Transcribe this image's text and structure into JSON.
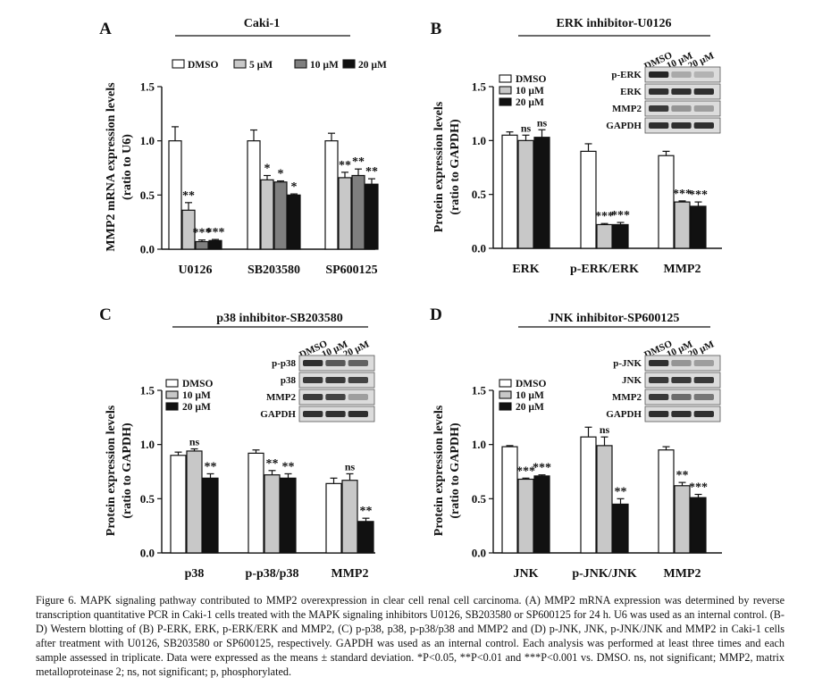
{
  "figure_caption": "Figure 6. MAPK signaling pathway contributed to MMP2 overexpression in clear cell renal cell carcinoma. (A) MMP2 mRNA expression was determined by reverse transcription quantitative PCR in Caki-1 cells treated with the MAPK signaling inhibitors U0126, SB203580 or SP600125 for 24 h. U6 was used as an internal control. (B-D) Western blotting of (B) P-ERK, ERK, p-ERK/ERK and MMP2, (C) p-p38, p38, p-p38/p38 and MMP2 and (D) p-JNK, JNK, p-JNK/JNK and MMP2 in Caki-1 cells after treatment with U0126, SB203580 or SP600125, respectively. GAPDH was used as an internal control. Each analysis was performed at least three times and each sample assessed in triplicate. Data were expressed as the means ± standard deviation. *P<0.05, **P<0.01 and ***P<0.001 vs. DMSO. ns, not significant; MMP2, matrix metalloproteinase 2; ns, not significant; p, phosphorylated.",
  "colors": {
    "DMSO": "#ffffff",
    "light_gray": "#c8c8c8",
    "dark_gray": "#7f7f7f",
    "black": "#111111"
  },
  "chart_data": [
    {
      "panel": "A",
      "type": "bar",
      "title": "Caki-1",
      "ylabel": [
        "MMP2 mRNA expression levels",
        "(ratio to U6)"
      ],
      "ylim": [
        0,
        1.5
      ],
      "yticks": [
        "0.0",
        "0.5",
        "1.0",
        "1.5"
      ],
      "categories": [
        "U0126",
        "SB203580",
        "SP600125"
      ],
      "legend_position": "top",
      "series": [
        {
          "name": "DMSO",
          "color": "#ffffff",
          "values": [
            1.0,
            1.0,
            1.0
          ],
          "errors": [
            0.13,
            0.1,
            0.07
          ]
        },
        {
          "name": "5 µM",
          "color": "#c8c8c8",
          "values": [
            0.36,
            0.64,
            0.66
          ],
          "errors": [
            0.07,
            0.04,
            0.05
          ]
        },
        {
          "name": "10 µM",
          "color": "#7f7f7f",
          "values": [
            0.07,
            0.62,
            0.68
          ],
          "errors": [
            0.015,
            0.01,
            0.06
          ]
        },
        {
          "name": "20 µM",
          "color": "#111111",
          "values": [
            0.08,
            0.5,
            0.6
          ],
          "errors": [
            0.01,
            0.01,
            0.05
          ]
        }
      ],
      "annotations": [
        [
          "",
          "**",
          "***",
          "***"
        ],
        [
          "",
          "*",
          "*",
          "*"
        ],
        [
          "",
          "**",
          "**",
          "**"
        ]
      ],
      "blot": null
    },
    {
      "panel": "B",
      "type": "bar",
      "title": "ERK inhibitor-U0126",
      "ylabel": [
        "Protein expression levels",
        "(ratio to GAPDH)"
      ],
      "ylim": [
        0,
        1.5
      ],
      "yticks": [
        "0.0",
        "0.5",
        "1.0",
        "1.5"
      ],
      "categories": [
        "ERK",
        "p-ERK/ERK",
        "MMP2"
      ],
      "legend_position": "top-left",
      "series": [
        {
          "name": "DMSO",
          "color": "#ffffff",
          "values": [
            1.05,
            0.9,
            0.86
          ],
          "errors": [
            0.03,
            0.07,
            0.04
          ]
        },
        {
          "name": "10 µM",
          "color": "#c8c8c8",
          "values": [
            1.0,
            0.22,
            0.43
          ],
          "errors": [
            0.05,
            0.01,
            0.01
          ]
        },
        {
          "name": "20 µM",
          "color": "#111111",
          "values": [
            1.03,
            0.22,
            0.39
          ],
          "errors": [
            0.07,
            0.02,
            0.04
          ]
        }
      ],
      "annotations": [
        [
          "",
          "ns",
          "ns"
        ],
        [
          "",
          "***",
          "***"
        ],
        [
          "",
          "***",
          "***"
        ]
      ],
      "blot": {
        "lanes": [
          "DMSO",
          "10 µM",
          "20 µM"
        ],
        "rows": [
          {
            "label": "p-ERK",
            "bands": [
              0.9,
              0.25,
              0.2
            ]
          },
          {
            "label": "ERK",
            "bands": [
              0.85,
              0.85,
              0.85
            ]
          },
          {
            "label": "MMP2",
            "bands": [
              0.8,
              0.35,
              0.3
            ]
          },
          {
            "label": "GAPDH",
            "bands": [
              0.85,
              0.85,
              0.85
            ]
          }
        ]
      }
    },
    {
      "panel": "C",
      "type": "bar",
      "title": "p38 inhibitor-SB203580",
      "ylabel": [
        "Protein expression levels",
        "(ratio to GAPDH)"
      ],
      "ylim": [
        0,
        1.5
      ],
      "yticks": [
        "0.0",
        "0.5",
        "1.0",
        "1.5"
      ],
      "categories": [
        "p38",
        "p-p38/p38",
        "MMP2"
      ],
      "legend_position": "top-left",
      "series": [
        {
          "name": "DMSO",
          "color": "#ffffff",
          "values": [
            0.9,
            0.92,
            0.64
          ],
          "errors": [
            0.03,
            0.03,
            0.05
          ]
        },
        {
          "name": "10 µM",
          "color": "#c8c8c8",
          "values": [
            0.94,
            0.72,
            0.67
          ],
          "errors": [
            0.02,
            0.04,
            0.06
          ]
        },
        {
          "name": "20 µM",
          "color": "#111111",
          "values": [
            0.69,
            0.69,
            0.29
          ],
          "errors": [
            0.04,
            0.04,
            0.03
          ]
        }
      ],
      "annotations": [
        [
          "",
          "ns",
          "**"
        ],
        [
          "",
          "**",
          "**"
        ],
        [
          "",
          "ns",
          "**"
        ]
      ],
      "blot": {
        "lanes": [
          "DMSO",
          "10 µM",
          "20 µM"
        ],
        "rows": [
          {
            "label": "p-p38",
            "bands": [
              0.85,
              0.65,
              0.6
            ]
          },
          {
            "label": "p38",
            "bands": [
              0.8,
              0.8,
              0.75
            ]
          },
          {
            "label": "MMP2",
            "bands": [
              0.8,
              0.75,
              0.3
            ]
          },
          {
            "label": "GAPDH",
            "bands": [
              0.85,
              0.85,
              0.85
            ]
          }
        ]
      }
    },
    {
      "panel": "D",
      "type": "bar",
      "title": "JNK inhibitor-SP600125",
      "ylabel": [
        "Protein expression levels",
        "(ratio to GAPDH)"
      ],
      "ylim": [
        0,
        1.5
      ],
      "yticks": [
        "0.0",
        "0.5",
        "1.0",
        "1.5"
      ],
      "categories": [
        "JNK",
        "p-JNK/JNK",
        "MMP2"
      ],
      "legend_position": "top-left",
      "series": [
        {
          "name": "DMSO",
          "color": "#ffffff",
          "values": [
            0.98,
            1.07,
            0.95
          ],
          "errors": [
            0.01,
            0.09,
            0.03
          ]
        },
        {
          "name": "10 µM",
          "color": "#c8c8c8",
          "values": [
            0.68,
            0.99,
            0.62
          ],
          "errors": [
            0.01,
            0.08,
            0.03
          ]
        },
        {
          "name": "20 µM",
          "color": "#111111",
          "values": [
            0.71,
            0.45,
            0.51
          ],
          "errors": [
            0.01,
            0.05,
            0.03
          ]
        }
      ],
      "annotations": [
        [
          "",
          "***",
          "***"
        ],
        [
          "",
          "ns",
          "**"
        ],
        [
          "",
          "**",
          "***"
        ]
      ],
      "blot": {
        "lanes": [
          "DMSO",
          "10 µM",
          "20 µM"
        ],
        "rows": [
          {
            "label": "p-JNK",
            "bands": [
              0.85,
              0.35,
              0.3
            ]
          },
          {
            "label": "JNK",
            "bands": [
              0.8,
              0.8,
              0.8
            ]
          },
          {
            "label": "MMP2",
            "bands": [
              0.8,
              0.55,
              0.5
            ]
          },
          {
            "label": "GAPDH",
            "bands": [
              0.85,
              0.85,
              0.85
            ]
          }
        ]
      }
    }
  ]
}
